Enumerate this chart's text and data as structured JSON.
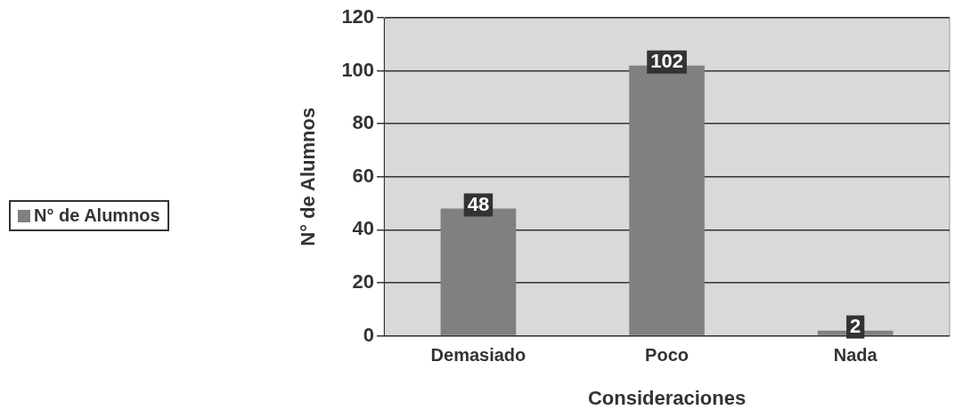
{
  "chart_data": {
    "type": "bar",
    "xlabel": "Consideraciones",
    "ylabel": "N° de Alumnos",
    "categories": [
      "Demasiado",
      "Poco",
      "Nada"
    ],
    "series": [
      {
        "name": "N° de Alumnos",
        "color": "#808080",
        "values": [
          48,
          102,
          2
        ]
      }
    ],
    "ylim": [
      0,
      120
    ],
    "yticks": [
      0,
      20,
      40,
      60,
      80,
      100,
      120
    ],
    "grid": "y",
    "legend": "left",
    "data_labels": true
  }
}
